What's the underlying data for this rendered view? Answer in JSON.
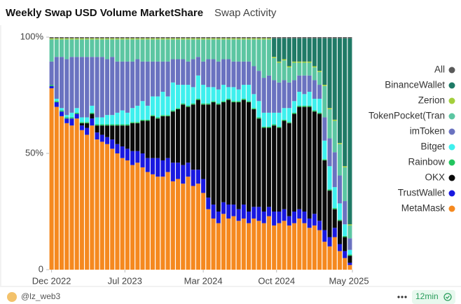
{
  "chart_data": {
    "type": "stacked-bar",
    "title": "Weekly Swap USD Volume MarketShare",
    "subtitle": "Swap Activity",
    "ylim": [
      0,
      100
    ],
    "yticks": [
      0,
      {
        "value": 50,
        "label": "50%"
      },
      {
        "value": 100,
        "label": "100%"
      }
    ],
    "xlim": [
      -0.5,
      59.5
    ],
    "xticks": [
      {
        "value": 0,
        "label": "Dec 2022"
      },
      {
        "value": 14.5,
        "label": "Jul 2023"
      },
      {
        "value": 30,
        "label": "Mar 2024"
      },
      {
        "value": 44.5,
        "label": "Oct 2024"
      },
      {
        "value": 59.5,
        "label": "May 2025"
      }
    ],
    "legend": "right",
    "series": [
      {
        "name": "MetaMask",
        "color": "#f5891f",
        "values": [
          78,
          70,
          66,
          63,
          62,
          65,
          60,
          58,
          62,
          56,
          55,
          54,
          52,
          50,
          48,
          47,
          45,
          46,
          44,
          42,
          41,
          40,
          40,
          42,
          38,
          39,
          37,
          40,
          36,
          37,
          33,
          26,
          22,
          20,
          24,
          22,
          23,
          21,
          22,
          20,
          22,
          21,
          20,
          23,
          19,
          20,
          21,
          19,
          20,
          22,
          20,
          18,
          19,
          17,
          12,
          10,
          14,
          8,
          5,
          2
        ]
      },
      {
        "name": "TrustWallet",
        "color": "#1818e0",
        "values": [
          1,
          2,
          2,
          2,
          3,
          2,
          2,
          3,
          3,
          3,
          3,
          3,
          4,
          4,
          5,
          5,
          6,
          5,
          6,
          6,
          7,
          8,
          7,
          6,
          8,
          7,
          8,
          6,
          7,
          6,
          6,
          5,
          6,
          5,
          5,
          6,
          5,
          5,
          6,
          5,
          5,
          6,
          5,
          4,
          6,
          5,
          5,
          4,
          5,
          4,
          5,
          4,
          5,
          4,
          5,
          4,
          4,
          3,
          3,
          1
        ]
      },
      {
        "name": "OKX",
        "color": "#0a0a0a",
        "values": [
          0,
          0,
          0,
          0,
          0,
          0,
          1,
          2,
          2,
          3,
          4,
          5,
          6,
          8,
          9,
          10,
          12,
          12,
          14,
          16,
          18,
          17,
          19,
          18,
          22,
          23,
          26,
          24,
          28,
          30,
          32,
          40,
          44,
          46,
          43,
          45,
          44,
          46,
          45,
          47,
          42,
          38,
          36,
          34,
          37,
          36,
          38,
          40,
          42,
          44,
          45,
          48,
          44,
          46,
          30,
          20,
          8,
          10,
          6,
          3
        ]
      },
      {
        "name": "Rainbow",
        "color": "#22c55e",
        "values": [
          0.5,
          0.5,
          0.5,
          0.5,
          0.5,
          0.5,
          0.5,
          0.5,
          0.5,
          0.5,
          0.5,
          0.5,
          0.5,
          0.5,
          0.5,
          0.5,
          0.5,
          0.5,
          0.5,
          0.5,
          0.5,
          0.5,
          0.5,
          0.5,
          0.5,
          0.5,
          0.5,
          0.5,
          0.5,
          0.5,
          0.5,
          0.5,
          0.5,
          0.5,
          0.5,
          0.5,
          0.5,
          0.5,
          0.5,
          0.5,
          0.5,
          0.5,
          0.5,
          0.5,
          0.5,
          0.5,
          0.5,
          0.5,
          0.5,
          0.5,
          0.5,
          0.5,
          0.5,
          0.5,
          0.5,
          0.5,
          0.5,
          0.5,
          0.5,
          0.5
        ]
      },
      {
        "name": "Bitget",
        "color": "#3ff0ee",
        "values": [
          0,
          1,
          1,
          1,
          2,
          2,
          2,
          2,
          3,
          3,
          3,
          4,
          4,
          5,
          6,
          5,
          6,
          7,
          8,
          6,
          8,
          9,
          10,
          8,
          12,
          10,
          8,
          9,
          7,
          10,
          8,
          7,
          6,
          6,
          7,
          5,
          6,
          5,
          6,
          7,
          6,
          7,
          6,
          6,
          5,
          6,
          5,
          6,
          5,
          6,
          5,
          6,
          5,
          6,
          8,
          10,
          9,
          7,
          5,
          2
        ]
      },
      {
        "name": "imToken",
        "color": "#6a72c0",
        "values": [
          10,
          18,
          22,
          24,
          24,
          22,
          26,
          26,
          21,
          26,
          26,
          24,
          25,
          22,
          21,
          22,
          20,
          20,
          17,
          19,
          15,
          15,
          13,
          15,
          10,
          11,
          11,
          10,
          12,
          8,
          10,
          12,
          12,
          12,
          11,
          12,
          11,
          12,
          10,
          10,
          12,
          13,
          15,
          16,
          14,
          13,
          12,
          11,
          9,
          7,
          8,
          7,
          8,
          6,
          10,
          12,
          15,
          12,
          10,
          5
        ]
      },
      {
        "name": "TokenPocket(Tran",
        "color": "#5cc6a2",
        "values": [
          9.5,
          7.5,
          7.5,
          8.5,
          7.5,
          7.5,
          7.5,
          7.5,
          7.5,
          7.5,
          7.5,
          8.5,
          7.5,
          9.5,
          9.5,
          9.5,
          9.5,
          8.5,
          9.5,
          9.5,
          9.5,
          9.5,
          9.5,
          9.5,
          8.5,
          8.5,
          8.5,
          9.5,
          8.5,
          7.5,
          9.5,
          8.5,
          8.5,
          9.5,
          8.5,
          8.5,
          9.5,
          9.5,
          9.5,
          9.5,
          11.5,
          13.5,
          16.5,
          15.5,
          9.5,
          8.5,
          8.5,
          6.5,
          7.5,
          5.5,
          5.5,
          5.5,
          5.5,
          5.5,
          13.5,
          12.5,
          13.5,
          13.5,
          14.5,
          5.5
        ]
      },
      {
        "name": "Zerion",
        "color": "#a3cf3c",
        "values": [
          0.5,
          0.5,
          0.5,
          0.5,
          0.5,
          0.5,
          0.5,
          0.5,
          0.5,
          0.5,
          0.5,
          0.5,
          0.5,
          0.5,
          0.5,
          0.5,
          0.5,
          0.5,
          0.5,
          0.5,
          0.5,
          0.5,
          0.5,
          0.5,
          0.5,
          0.5,
          0.5,
          0.5,
          0.5,
          0.5,
          0.5,
          0.5,
          0.5,
          0.5,
          0.5,
          0.5,
          0.5,
          0.5,
          0.5,
          0.5,
          0.5,
          0.5,
          0.5,
          0.5,
          0.5,
          0.5,
          0.5,
          0.5,
          0.5,
          0.5,
          0.5,
          0.5,
          0.5,
          0.5,
          0.5,
          0.5,
          0.5,
          0.5,
          0.5,
          0.5
        ]
      },
      {
        "name": "BinanceWallet",
        "color": "#1f7a66",
        "values": [
          0,
          0,
          0,
          0,
          0,
          0,
          0,
          0,
          0,
          0,
          0,
          0,
          0,
          0,
          0,
          0,
          0,
          0,
          0,
          0,
          0,
          0,
          0,
          0,
          0,
          0,
          0,
          0,
          0,
          0,
          0,
          0,
          0,
          0,
          0,
          0,
          0,
          0,
          0,
          0,
          0,
          0,
          0,
          0,
          8,
          10,
          9,
          12,
          10,
          10,
          10,
          10,
          12,
          14,
          20,
          30,
          35,
          45,
          55,
          80
        ]
      },
      {
        "name": "All",
        "color": "#5a5a5a",
        "values": [
          0.5,
          0.5,
          0.5,
          0.5,
          0.5,
          0.5,
          0.5,
          0.5,
          0.5,
          0.5,
          0.5,
          0.5,
          0.5,
          0.5,
          0.5,
          0.5,
          0.5,
          0.5,
          0.5,
          0.5,
          0.5,
          0.5,
          0.5,
          0.5,
          0.5,
          0.5,
          0.5,
          0.5,
          0.5,
          0.5,
          0.5,
          0.5,
          0.5,
          0.5,
          0.5,
          0.5,
          0.5,
          0.5,
          0.5,
          0.5,
          0.5,
          0.5,
          0.5,
          0.5,
          0.5,
          0.5,
          0.5,
          0.5,
          0.5,
          0.5,
          0.5,
          0.5,
          0.5,
          0.5,
          0.5,
          0.5,
          0.5,
          0.5,
          0.5,
          0.5
        ]
      }
    ]
  },
  "footer": {
    "author": "@lz_web3",
    "age": "12min"
  }
}
